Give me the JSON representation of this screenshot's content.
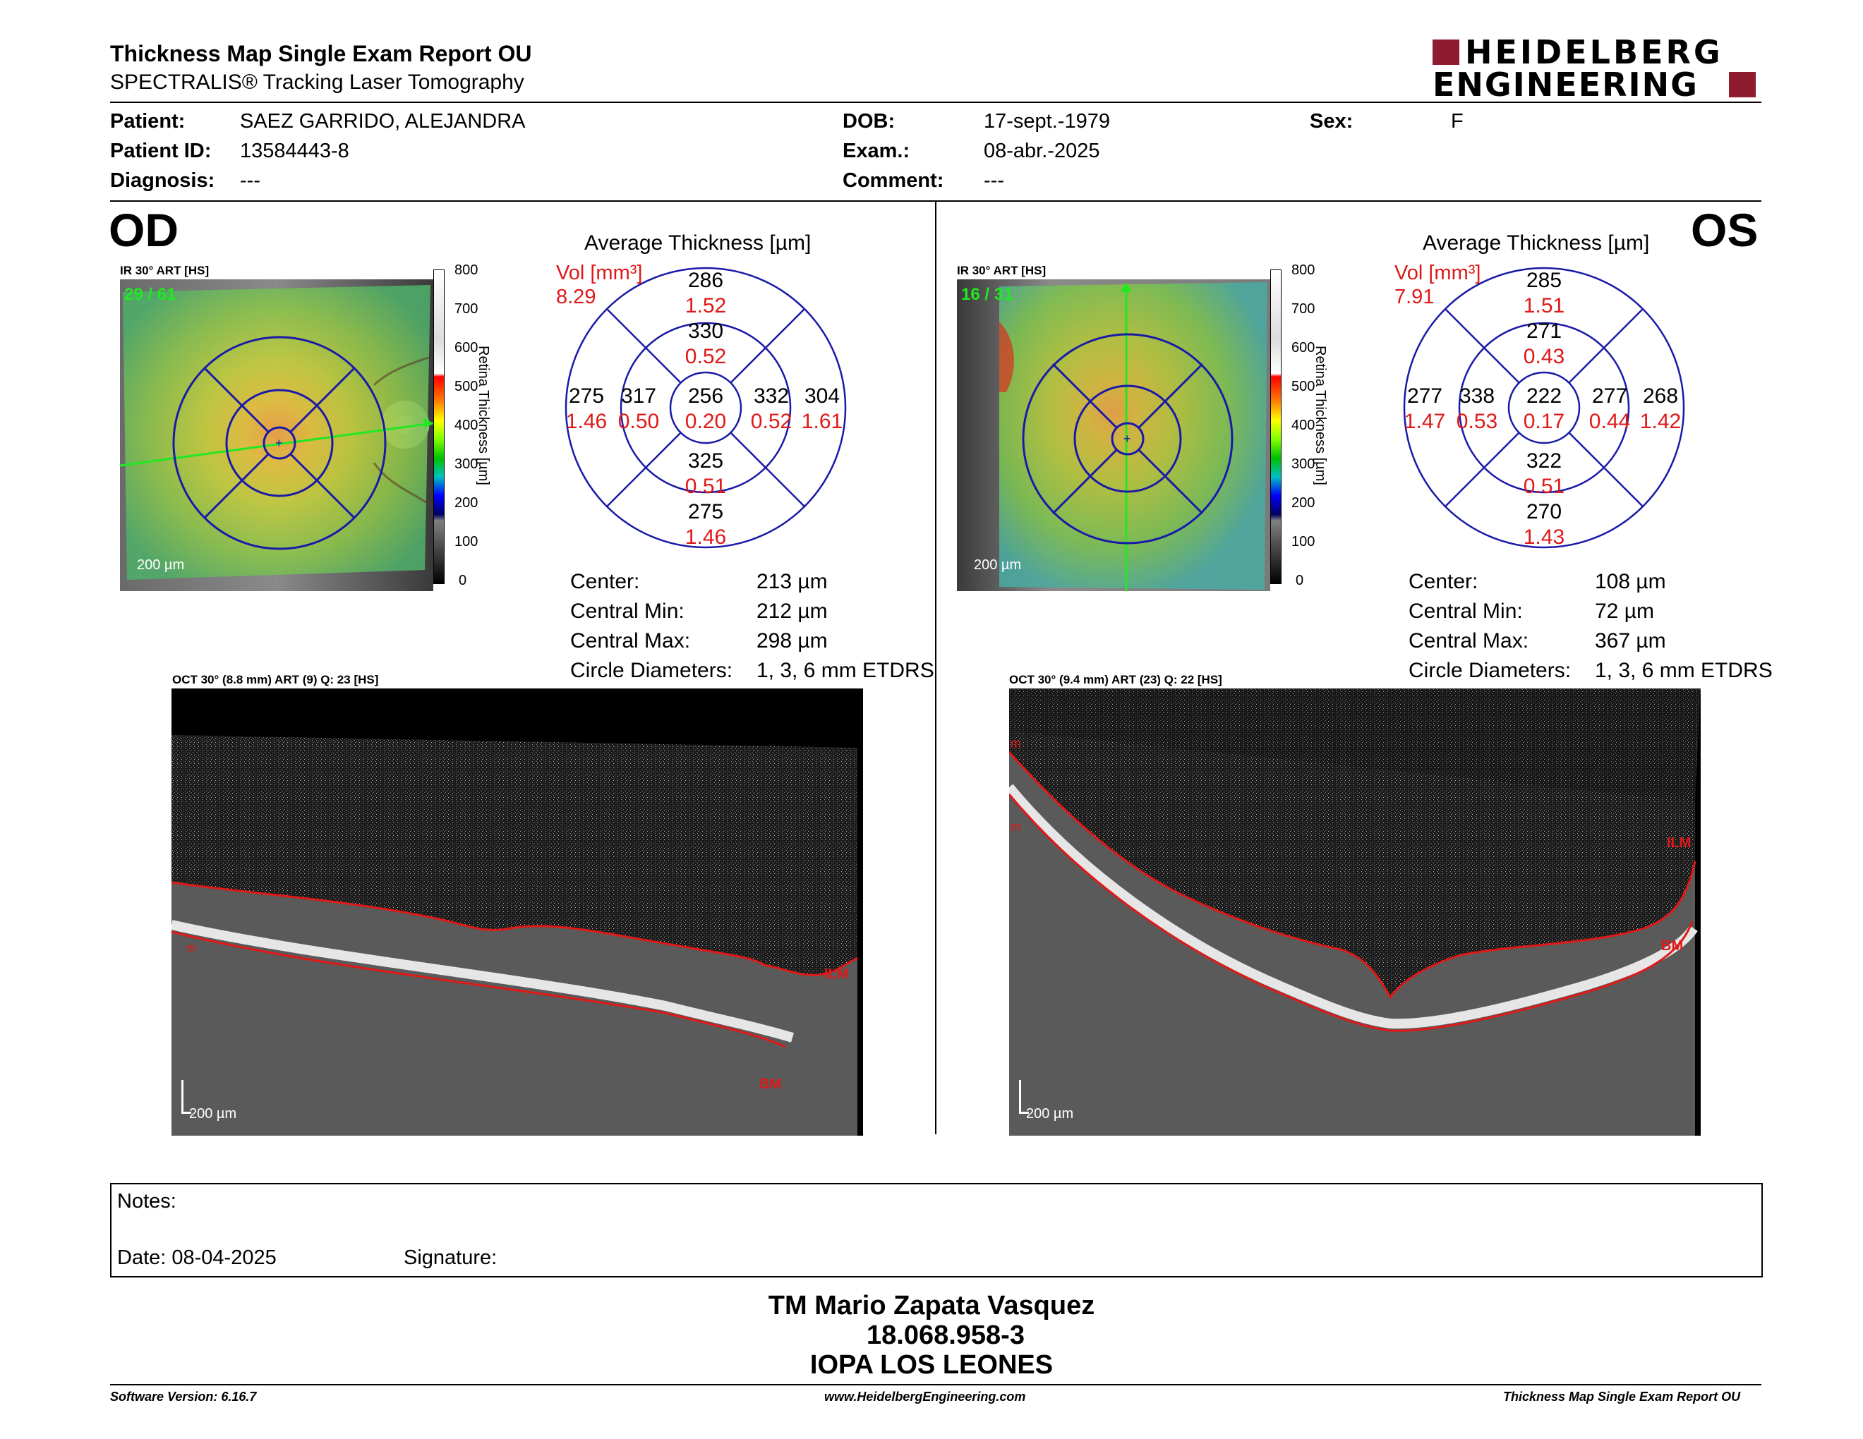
{
  "header": {
    "title": "Thickness Map Single Exam Report OU",
    "subtitle": "SPECTRALIS® Tracking Laser Tomography",
    "logo_line1": "HEIDELBERG",
    "logo_line2": "ENGINEERING"
  },
  "patient": {
    "patient_label": "Patient:",
    "patient_value": "SAEZ GARRIDO, ALEJANDRA",
    "id_label": "Patient ID:",
    "id_value": "13584443-8",
    "diagnosis_label": "Diagnosis:",
    "diagnosis_value": "---",
    "dob_label": "DOB:",
    "dob_value": "17-sept.-1979",
    "exam_label": "Exam.:",
    "exam_value": "08-abr.-2025",
    "comment_label": "Comment:",
    "comment_value": "---",
    "sex_label": "Sex:",
    "sex_value": "F"
  },
  "scale": {
    "ticks": [
      "800",
      "700",
      "600",
      "500",
      "400",
      "300",
      "200",
      "100",
      "0"
    ],
    "label": "Retina  Thickness [µm]"
  },
  "od": {
    "eye_label": "OD",
    "ir_title": "IR 30° ART [HS]",
    "frame_count": "29 / 61",
    "scale_bar": "200 µm",
    "avg_title": "Average Thickness [µm]",
    "vol_label": "Vol [mm³]",
    "vol_value": "8.29",
    "sectors": {
      "outer_sup": [
        "286",
        "1.52"
      ],
      "inner_sup": [
        "330",
        "0.52"
      ],
      "outer_temp": [
        "275",
        "1.46"
      ],
      "inner_temp": [
        "317",
        "0.50"
      ],
      "center": [
        "256",
        "0.20"
      ],
      "inner_nasal": [
        "332",
        "0.52"
      ],
      "outer_nasal": [
        "304",
        "1.61"
      ],
      "inner_inf": [
        "325",
        "0.51"
      ],
      "outer_inf": [
        "275",
        "1.46"
      ]
    },
    "stats": {
      "center_label": "Center:",
      "center_value": "213 µm",
      "min_label": "Central Min:",
      "min_value": "212 µm",
      "max_label": "Central Max:",
      "max_value": "298 µm",
      "diam_label": "Circle Diameters:",
      "diam_value": "1, 3, 6 mm ETDRS"
    },
    "oct_title": "OCT 30° (8.8 mm) ART (9) Q: 23 [HS]",
    "oct_scale": "200 µm",
    "oct_labels": {
      "ilm": "ILM",
      "bm": "BM",
      "m": "m"
    }
  },
  "os": {
    "eye_label": "OS",
    "ir_title": "IR 30° ART [HS]",
    "frame_count": "16 / 31",
    "scale_bar": "200 µm",
    "avg_title": "Average Thickness [µm]",
    "vol_label": "Vol [mm³]",
    "vol_value": "7.91",
    "sectors": {
      "outer_sup": [
        "285",
        "1.51"
      ],
      "inner_sup": [
        "271",
        "0.43"
      ],
      "outer_temp": [
        "277",
        "1.47"
      ],
      "inner_temp": [
        "338",
        "0.53"
      ],
      "center": [
        "222",
        "0.17"
      ],
      "inner_nasal": [
        "277",
        "0.44"
      ],
      "outer_nasal": [
        "268",
        "1.42"
      ],
      "inner_inf": [
        "322",
        "0.51"
      ],
      "outer_inf": [
        "270",
        "1.43"
      ]
    },
    "stats": {
      "center_label": "Center:",
      "center_value": "108 µm",
      "min_label": "Central Min:",
      "min_value": "72 µm",
      "max_label": "Central Max:",
      "max_value": "367 µm",
      "diam_label": "Circle Diameters:",
      "diam_value": "1, 3, 6 mm ETDRS"
    },
    "oct_title": "OCT 30° (9.4 mm) ART (23) Q: 22 [HS]",
    "oct_scale": "200 µm",
    "oct_labels": {
      "ilm": "ILM",
      "bm": "BM",
      "m": "m"
    }
  },
  "notes": {
    "notes_label": "Notes:",
    "date_label": "Date: 08-04-2025",
    "signature_label": "Signature:"
  },
  "signature": {
    "name": "TM Mario Zapata Vasquez",
    "rut": "18.068.958-3",
    "institution": "IOPA LOS LEONES"
  },
  "footer": {
    "software": "Software Version: 6.16.7",
    "website": "www.HeidelbergEngineering.com",
    "report": "Thickness Map Single Exam Report OU"
  },
  "colors": {
    "ring": "#1a1aa8",
    "volume_red": "#e01818",
    "logo": "#8e1b2e",
    "scan_line": "#22e822",
    "frame_text": "#22e822",
    "layer_line": "#e01818"
  }
}
